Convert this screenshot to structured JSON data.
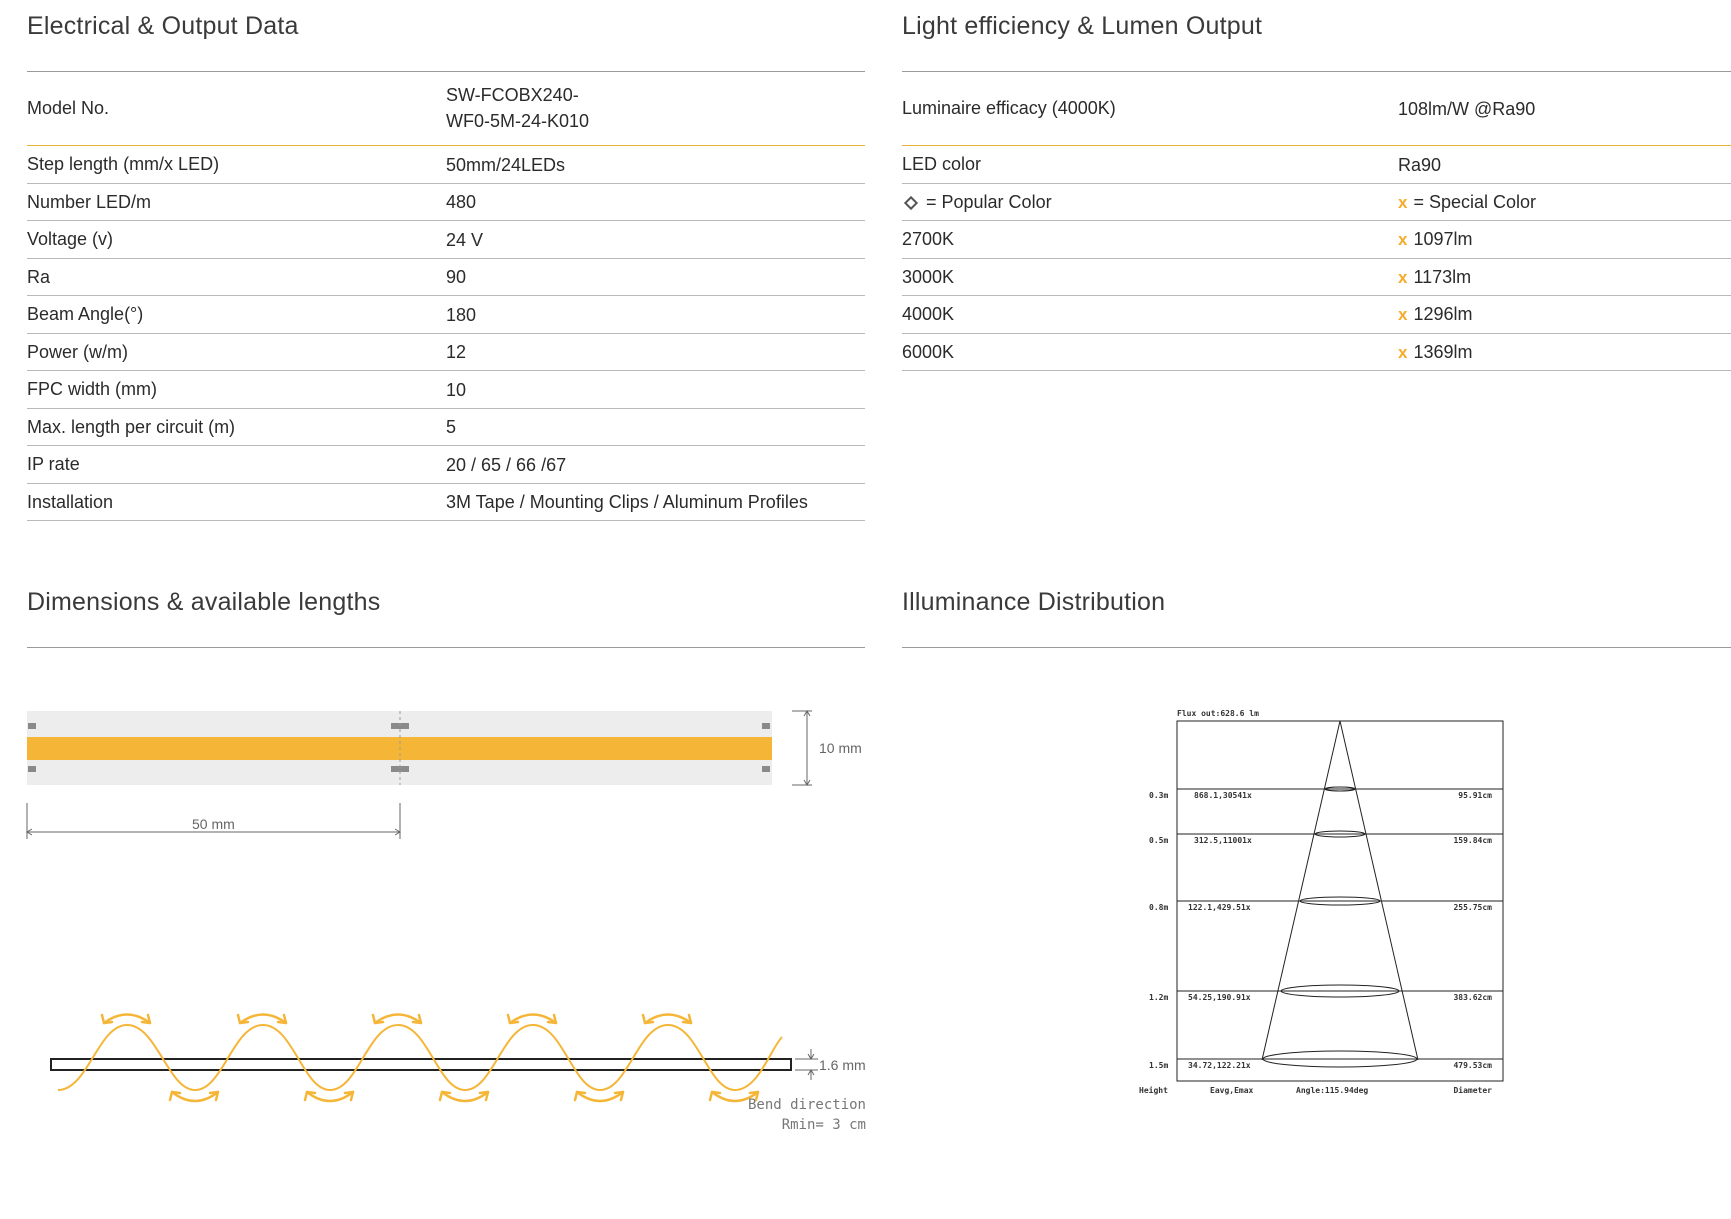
{
  "electrical": {
    "title": "Electrical & Output Data",
    "rows": [
      {
        "label": "Model No.",
        "value_line1": "SW-FCOBX240-",
        "value_line2": "WF0-5M-24-K010"
      },
      {
        "label": "Step length (mm/x LED)",
        "value": "50mm/24LEDs"
      },
      {
        "label": "Number LED/m",
        "value": "480"
      },
      {
        "label": "Voltage (v)",
        "value": "24 V"
      },
      {
        "label": "Ra",
        "value": "90"
      },
      {
        "label": "Beam Angle(°)",
        "value": "180"
      },
      {
        "label": "Power (w/m)",
        "value": "12"
      },
      {
        "label": "FPC width (mm)",
        "value": "10"
      },
      {
        "label": "Max. length per circuit (m)",
        "value": "5"
      },
      {
        "label": "IP rate",
        "value": "20 / 65 / 66 /67"
      },
      {
        "label": "Installation",
        "value": "3M Tape / Mounting Clips / Aluminum Profiles"
      }
    ]
  },
  "efficiency": {
    "title": "Light efficiency & Lumen Output",
    "efficacy_label": "Luminaire efficacy (4000K)",
    "efficacy_value": "108lm/W @Ra90",
    "led_color_label": "LED color",
    "led_color_value": "Ra90",
    "popular_legend": "= Popular Color",
    "special_legend": "= Special Color",
    "special_mark": "x",
    "rows": [
      {
        "cct": "2700K",
        "lumen": "1097lm"
      },
      {
        "cct": "3000K",
        "lumen": "1173lm"
      },
      {
        "cct": "4000K",
        "lumen": "1296lm"
      },
      {
        "cct": "6000K",
        "lumen": "1369lm"
      }
    ]
  },
  "dimensions": {
    "title": "Dimensions & available lengths",
    "width_label": "10 mm",
    "step_label": "50 mm",
    "thickness_label": "1.6 mm",
    "bend_label_1": "Bend direction",
    "bend_label_2": "Rmin= 3 cm"
  },
  "illuminance": {
    "title": "Illuminance Distribution",
    "flux": "Flux out:628.6 lm",
    "rows": [
      {
        "height": "0.3m",
        "evals": "868.1,30541x",
        "diameter": "95.91cm"
      },
      {
        "height": "0.5m",
        "evals": "312.5,11001x",
        "diameter": "159.84cm"
      },
      {
        "height": "0.8m",
        "evals": "122.1,429.51x",
        "diameter": "255.75cm"
      },
      {
        "height": "1.2m",
        "evals": "54.25,190.91x",
        "diameter": "383.62cm"
      },
      {
        "height": "1.5m",
        "evals": "34.72,122.21x",
        "diameter": "479.53cm"
      }
    ],
    "footer_height": "Height",
    "footer_eavg": "Eavg,Emax",
    "footer_angle": "Angle:115.94deg",
    "footer_diameter": "Diameter"
  },
  "colors": {
    "accent": "#f5b638",
    "rule": "#9a9a9a",
    "gold_rule": "#e8b23a",
    "strip_bg": "#eeeeee",
    "pad": "#8a8a8a"
  }
}
